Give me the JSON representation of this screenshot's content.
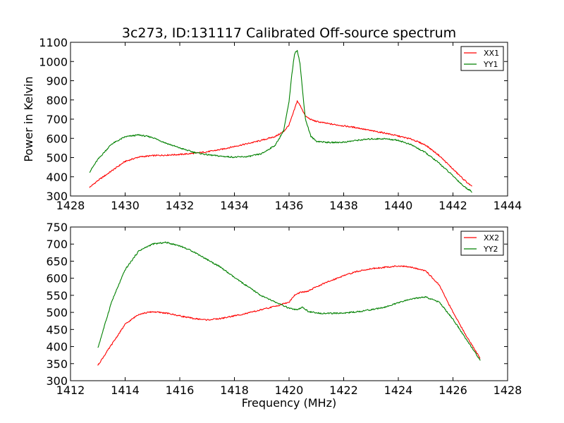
{
  "chart_data": [
    {
      "type": "line",
      "title": "3c273, ID:131117 Calibrated Off-source spectrum",
      "xlabel": "",
      "ylabel": "Power in Kelvin",
      "xlim": [
        1428,
        1444
      ],
      "ylim": [
        300,
        1100
      ],
      "xticks": [
        1428,
        1430,
        1432,
        1434,
        1436,
        1438,
        1440,
        1442,
        1444
      ],
      "yticks": [
        300,
        400,
        500,
        600,
        700,
        800,
        900,
        1000,
        1100
      ],
      "legend_position": "top-right",
      "grid": false,
      "series": [
        {
          "name": "XX1",
          "color": "#ff0000",
          "x": [
            1428.7,
            1429.0,
            1429.5,
            1430.0,
            1430.5,
            1431.0,
            1431.5,
            1432.0,
            1432.5,
            1433.0,
            1433.5,
            1434.0,
            1434.5,
            1435.0,
            1435.5,
            1435.8,
            1436.0,
            1436.15,
            1436.3,
            1436.45,
            1436.6,
            1436.8,
            1437.0,
            1437.5,
            1438.0,
            1438.5,
            1439.0,
            1439.5,
            1440.0,
            1440.5,
            1441.0,
            1441.5,
            1442.0,
            1442.4,
            1442.7
          ],
          "y": [
            345,
            380,
            430,
            480,
            503,
            510,
            513,
            516,
            522,
            530,
            542,
            558,
            573,
            590,
            610,
            635,
            670,
            730,
            795,
            760,
            715,
            698,
            688,
            675,
            665,
            655,
            640,
            628,
            612,
            595,
            565,
            510,
            440,
            385,
            348
          ]
        },
        {
          "name": "YY1",
          "color": "#008000",
          "x": [
            1428.7,
            1429.0,
            1429.5,
            1430.0,
            1430.5,
            1431.0,
            1431.5,
            1432.0,
            1432.5,
            1433.0,
            1433.5,
            1434.0,
            1434.5,
            1435.0,
            1435.5,
            1435.8,
            1436.0,
            1436.1,
            1436.2,
            1436.3,
            1436.4,
            1436.5,
            1436.6,
            1436.8,
            1437.0,
            1437.5,
            1438.0,
            1438.5,
            1439.0,
            1439.5,
            1440.0,
            1440.5,
            1441.0,
            1441.5,
            1442.0,
            1442.4,
            1442.7
          ],
          "y": [
            425,
            490,
            570,
            608,
            618,
            605,
            575,
            550,
            528,
            515,
            507,
            502,
            505,
            520,
            565,
            640,
            790,
            930,
            1040,
            1060,
            990,
            840,
            700,
            610,
            585,
            578,
            580,
            590,
            597,
            598,
            590,
            565,
            525,
            470,
            405,
            350,
            322
          ]
        }
      ]
    },
    {
      "type": "line",
      "title": "",
      "xlabel": "Frequency (MHz)",
      "ylabel": "",
      "xlim": [
        1412,
        1428
      ],
      "ylim": [
        300,
        750
      ],
      "xticks": [
        1412,
        1414,
        1416,
        1418,
        1420,
        1422,
        1424,
        1426,
        1428
      ],
      "yticks": [
        300,
        350,
        400,
        450,
        500,
        550,
        600,
        650,
        700,
        750
      ],
      "legend_position": "top-right",
      "grid": false,
      "series": [
        {
          "name": "XX2",
          "color": "#ff0000",
          "x": [
            1413.0,
            1413.5,
            1414.0,
            1414.5,
            1415.0,
            1415.5,
            1416.0,
            1416.5,
            1417.0,
            1417.5,
            1418.0,
            1418.5,
            1419.0,
            1419.5,
            1420.0,
            1420.2,
            1420.4,
            1420.7,
            1421.0,
            1421.5,
            1422.0,
            1422.5,
            1423.0,
            1423.5,
            1424.0,
            1424.5,
            1425.0,
            1425.5,
            1426.0,
            1426.5,
            1427.0
          ],
          "y": [
            345,
            405,
            465,
            495,
            502,
            498,
            490,
            482,
            478,
            482,
            490,
            498,
            508,
            518,
            530,
            550,
            558,
            562,
            575,
            592,
            608,
            620,
            628,
            632,
            636,
            632,
            622,
            580,
            500,
            430,
            365
          ]
        },
        {
          "name": "YY2",
          "color": "#008000",
          "x": [
            1413.0,
            1413.5,
            1414.0,
            1414.5,
            1415.0,
            1415.5,
            1416.0,
            1416.5,
            1417.0,
            1417.5,
            1418.0,
            1418.5,
            1419.0,
            1419.5,
            1420.0,
            1420.3,
            1420.5,
            1420.7,
            1421.0,
            1421.5,
            1422.0,
            1422.5,
            1423.0,
            1423.5,
            1424.0,
            1424.5,
            1425.0,
            1425.5,
            1426.0,
            1426.5,
            1427.0
          ],
          "y": [
            395,
            530,
            625,
            680,
            700,
            705,
            695,
            678,
            655,
            632,
            602,
            575,
            548,
            530,
            512,
            507,
            515,
            503,
            498,
            497,
            498,
            502,
            508,
            515,
            528,
            540,
            545,
            530,
            480,
            420,
            360
          ]
        }
      ]
    }
  ]
}
